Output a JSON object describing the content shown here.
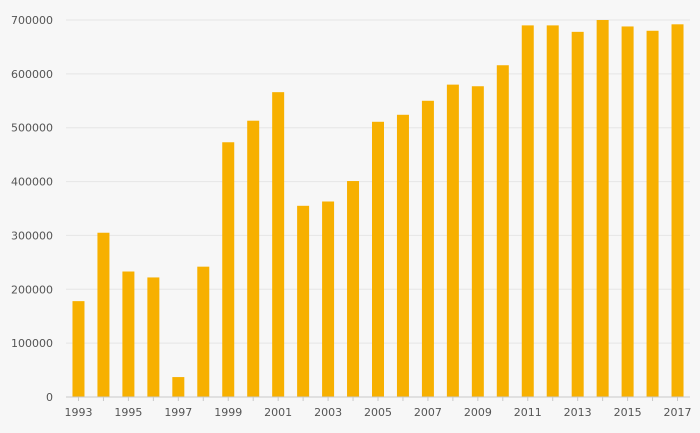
{
  "chart_data": {
    "type": "bar",
    "title": "",
    "xlabel": "",
    "ylabel": "",
    "categories": [
      "1993",
      "1994",
      "1995",
      "1996",
      "1997",
      "1998",
      "1999",
      "2000",
      "2001",
      "2002",
      "2003",
      "2004",
      "2005",
      "2006",
      "2007",
      "2008",
      "2009",
      "2010",
      "2011",
      "2012",
      "2013",
      "2014",
      "2015",
      "2016",
      "2017"
    ],
    "values": [
      178000,
      305000,
      233000,
      222000,
      37000,
      242000,
      473000,
      513000,
      566000,
      355000,
      363000,
      401000,
      511000,
      524000,
      550000,
      580000,
      577000,
      616000,
      690000,
      690000,
      678000,
      700000,
      688000,
      680000,
      692000
    ],
    "x_tick_labels": [
      "1993",
      "1995",
      "1997",
      "1999",
      "2001",
      "2003",
      "2005",
      "2007",
      "2009",
      "2011",
      "2013",
      "2015",
      "2017"
    ],
    "y_ticks": [
      0,
      100000,
      200000,
      300000,
      400000,
      500000,
      600000,
      700000
    ],
    "ylim": [
      0,
      700000
    ],
    "grid": true,
    "legend": "none",
    "bar_color": "#f7b000",
    "background": "#f7f7f7"
  }
}
